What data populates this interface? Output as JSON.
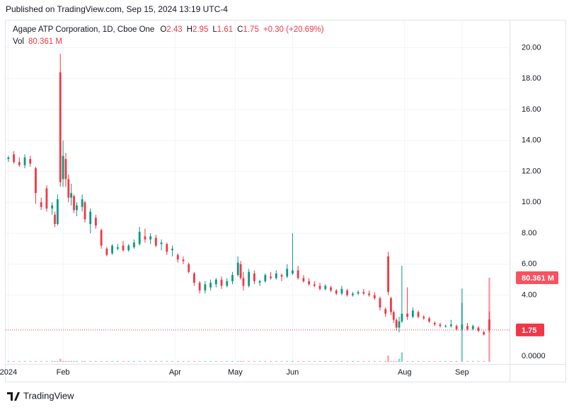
{
  "page": {
    "published": "Published on TradingView.com, Sep 15, 2024 13:19 UTC-4",
    "brand": "TradingView"
  },
  "chart_data": {
    "type": "candlestick",
    "symbol": "Agape ATP Corporation, 1D, Cboe One",
    "ohlc_prefixes": [
      "O",
      "H",
      "L",
      "C"
    ],
    "change": "+0.30 (+20.69%)",
    "volume_title": "Vol",
    "volume_label": "80.361 M",
    "up_color": "#089981",
    "down_color": "#f23645",
    "grid": true,
    "xlim": [
      -1,
      183.4
    ],
    "xticks": [
      {
        "value": 0,
        "label": "2024"
      },
      {
        "value": 20,
        "label": "Feb"
      },
      {
        "value": 61,
        "label": "Apr"
      },
      {
        "value": 83,
        "label": "May"
      },
      {
        "value": 104,
        "label": "Jun"
      },
      {
        "value": 145,
        "label": "Aug"
      },
      {
        "value": 166,
        "label": "Sep"
      }
    ],
    "ylim": [
      -0.45,
      21.8
    ],
    "yticks": [
      {
        "value": 4,
        "label": "4.00"
      },
      {
        "value": 6,
        "label": "6.00"
      },
      {
        "value": 8,
        "label": "8.00"
      },
      {
        "value": 10,
        "label": "10.00"
      },
      {
        "value": 12,
        "label": "12.00"
      },
      {
        "value": 14,
        "label": "14.00"
      },
      {
        "value": 16,
        "label": "16.00"
      },
      {
        "value": 18,
        "label": "18.00"
      },
      {
        "value": 20,
        "label": "20.00"
      }
    ],
    "y2lim": [
      0,
      326.8
    ],
    "y2ticks": [
      {
        "value": 0,
        "label": "0.0000"
      }
    ],
    "series": [
      {
        "x": [
          0,
          2,
          4,
          6,
          8,
          10,
          12,
          14,
          16,
          17,
          18,
          19,
          20,
          21,
          22,
          23,
          24,
          25,
          27,
          28,
          30,
          32,
          34,
          36,
          38,
          40,
          42,
          44,
          46,
          48,
          50,
          52,
          54,
          56,
          58,
          60,
          62,
          64,
          66,
          68,
          70,
          72,
          74,
          76,
          78,
          80,
          82,
          84,
          85,
          86,
          88,
          90,
          92,
          94,
          96,
          98,
          100,
          102,
          104,
          106,
          108,
          110,
          112,
          114,
          116,
          118,
          120,
          122,
          124,
          126,
          128,
          130,
          132,
          134,
          136,
          138,
          139,
          140,
          141,
          142,
          143,
          144,
          146,
          148,
          150,
          152,
          154,
          156,
          158,
          160,
          162,
          164,
          166,
          168,
          170,
          172,
          174,
          176
        ],
        "open": [
          12.8,
          13.1,
          12.6,
          12.4,
          12.8,
          12.2,
          10.0,
          10.9,
          9.6,
          9.2,
          8.6,
          18.4,
          11.5,
          12.8,
          11.5,
          10.3,
          10.4,
          9.5,
          9.7,
          10.0,
          8.6,
          9.0,
          8.2,
          7.0,
          6.7,
          7.0,
          7.2,
          6.9,
          7.1,
          7.3,
          7.8,
          7.6,
          7.7,
          7.3,
          7.3,
          6.9,
          6.6,
          6.3,
          6.0,
          5.4,
          4.8,
          4.3,
          4.5,
          4.7,
          5.0,
          4.6,
          4.9,
          5.3,
          6.0,
          5.1,
          4.6,
          5.4,
          4.8,
          4.9,
          5.2,
          5.1,
          5.3,
          5.2,
          5.4,
          5.6,
          5.1,
          4.9,
          4.7,
          4.6,
          4.4,
          4.5,
          4.3,
          4.1,
          4.3,
          4.0,
          4.1,
          4.2,
          4.1,
          4.0,
          3.8,
          3.1,
          6.5,
          3.8,
          2.9,
          2.4,
          1.9,
          2.3,
          2.8,
          2.6,
          2.9,
          2.6,
          2.5,
          2.2,
          2.1,
          2.0,
          2.0,
          2.0,
          1.8,
          2.0,
          1.8,
          1.9,
          1.6,
          2.43
        ],
        "high": [
          13.0,
          13.3,
          12.9,
          13.1,
          13.0,
          12.3,
          10.3,
          11.1,
          10.0,
          9.4,
          10.5,
          19.6,
          14.0,
          13.2,
          11.8,
          11.2,
          10.5,
          10.0,
          10.5,
          10.1,
          9.6,
          9.2,
          8.3,
          7.1,
          7.3,
          7.3,
          7.5,
          7.3,
          7.6,
          8.4,
          8.3,
          8.0,
          7.9,
          7.6,
          7.4,
          7.2,
          6.7,
          6.5,
          6.1,
          5.5,
          4.9,
          4.9,
          5.0,
          5.1,
          5.2,
          5.1,
          5.5,
          6.5,
          6.2,
          5.5,
          5.7,
          5.6,
          5.0,
          5.4,
          5.5,
          5.6,
          5.4,
          6.0,
          8.0,
          5.9,
          5.3,
          5.1,
          4.9,
          4.8,
          4.7,
          4.6,
          4.4,
          4.6,
          4.4,
          4.2,
          4.3,
          4.4,
          4.3,
          4.2,
          3.9,
          3.2,
          6.8,
          3.9,
          3.0,
          2.5,
          2.6,
          5.9,
          4.5,
          3.2,
          3.0,
          2.7,
          2.6,
          2.3,
          2.2,
          2.1,
          2.4,
          2.1,
          3.5,
          2.2,
          2.1,
          2.0,
          1.7,
          2.95
        ],
        "low": [
          12.6,
          12.5,
          12.3,
          12.2,
          12.3,
          9.9,
          9.5,
          9.4,
          9.2,
          8.4,
          8.5,
          11.0,
          11.0,
          11.0,
          10.0,
          9.8,
          9.3,
          9.1,
          9.4,
          8.7,
          8.0,
          8.3,
          7.0,
          6.5,
          6.6,
          6.9,
          6.8,
          6.8,
          7.0,
          7.2,
          7.4,
          7.3,
          7.1,
          6.9,
          6.6,
          6.5,
          6.1,
          6.0,
          5.4,
          4.6,
          4.1,
          4.1,
          4.3,
          4.5,
          4.4,
          4.5,
          4.7,
          5.2,
          5.0,
          4.3,
          4.5,
          4.7,
          4.6,
          4.8,
          5.0,
          5.0,
          4.9,
          5.1,
          5.3,
          5.0,
          4.8,
          4.6,
          4.5,
          4.3,
          4.3,
          4.2,
          4.0,
          4.0,
          3.9,
          3.9,
          4.0,
          4.0,
          3.9,
          3.7,
          3.0,
          2.6,
          4.0,
          2.7,
          2.2,
          1.7,
          1.6,
          2.2,
          2.4,
          2.5,
          2.5,
          2.4,
          2.2,
          2.0,
          1.9,
          1.9,
          1.9,
          1.7,
          1.7,
          1.7,
          1.7,
          1.6,
          1.4,
          1.61
        ],
        "close": [
          12.9,
          12.6,
          12.4,
          12.9,
          12.5,
          10.6,
          9.7,
          9.6,
          9.8,
          8.6,
          10.2,
          11.3,
          13.0,
          11.5,
          10.3,
          10.6,
          9.5,
          9.8,
          10.2,
          8.9,
          9.4,
          8.5,
          7.2,
          6.6,
          7.2,
          7.1,
          6.9,
          7.2,
          7.4,
          8.1,
          7.6,
          7.8,
          7.2,
          7.4,
          6.8,
          7.0,
          6.3,
          6.2,
          5.5,
          4.8,
          4.3,
          4.7,
          4.8,
          5.0,
          4.6,
          4.9,
          5.3,
          6.1,
          5.1,
          4.6,
          5.5,
          4.9,
          4.9,
          5.3,
          5.1,
          5.4,
          5.2,
          5.7,
          5.6,
          5.1,
          4.9,
          4.7,
          4.6,
          4.4,
          4.6,
          4.3,
          4.1,
          4.4,
          4.0,
          4.1,
          4.2,
          4.1,
          4.0,
          3.8,
          3.2,
          2.8,
          4.2,
          2.9,
          2.4,
          1.9,
          2.3,
          2.8,
          2.6,
          3.0,
          2.6,
          2.5,
          2.3,
          2.1,
          2.0,
          2.0,
          2.1,
          1.8,
          2.1,
          1.8,
          2.0,
          1.7,
          1.45,
          1.75
        ],
        "volume": [
          0.8,
          0.8,
          0.8,
          0.8,
          0.8,
          0.8,
          0.8,
          0.8,
          0.8,
          0.8,
          0.8,
          3,
          0.8,
          0.8,
          0.8,
          0.8,
          0.8,
          0.8,
          0.8,
          0.8,
          0.8,
          0.8,
          0.8,
          0.8,
          0.8,
          0.8,
          0.8,
          0.8,
          0.8,
          0.8,
          0.8,
          0.8,
          0.8,
          0.8,
          0.8,
          0.8,
          0.8,
          0.8,
          0.8,
          0.8,
          0.8,
          0.8,
          0.8,
          0.8,
          0.8,
          0.8,
          0.8,
          0.8,
          0.8,
          0.8,
          0.8,
          0.8,
          0.8,
          0.8,
          0.8,
          0.8,
          0.8,
          0.8,
          0.8,
          0.8,
          0.8,
          0.8,
          0.8,
          0.8,
          0.8,
          0.8,
          0.8,
          0.8,
          0.8,
          0.8,
          0.8,
          0.8,
          0.8,
          0.8,
          0.8,
          0.8,
          6,
          0.8,
          0.8,
          0.8,
          3,
          9,
          0.8,
          0.8,
          0.8,
          0.8,
          0.8,
          0.8,
          0.8,
          0.8,
          0.8,
          0.8,
          70,
          0.8,
          0.8,
          0.8,
          0.8,
          80.361
        ]
      }
    ]
  }
}
